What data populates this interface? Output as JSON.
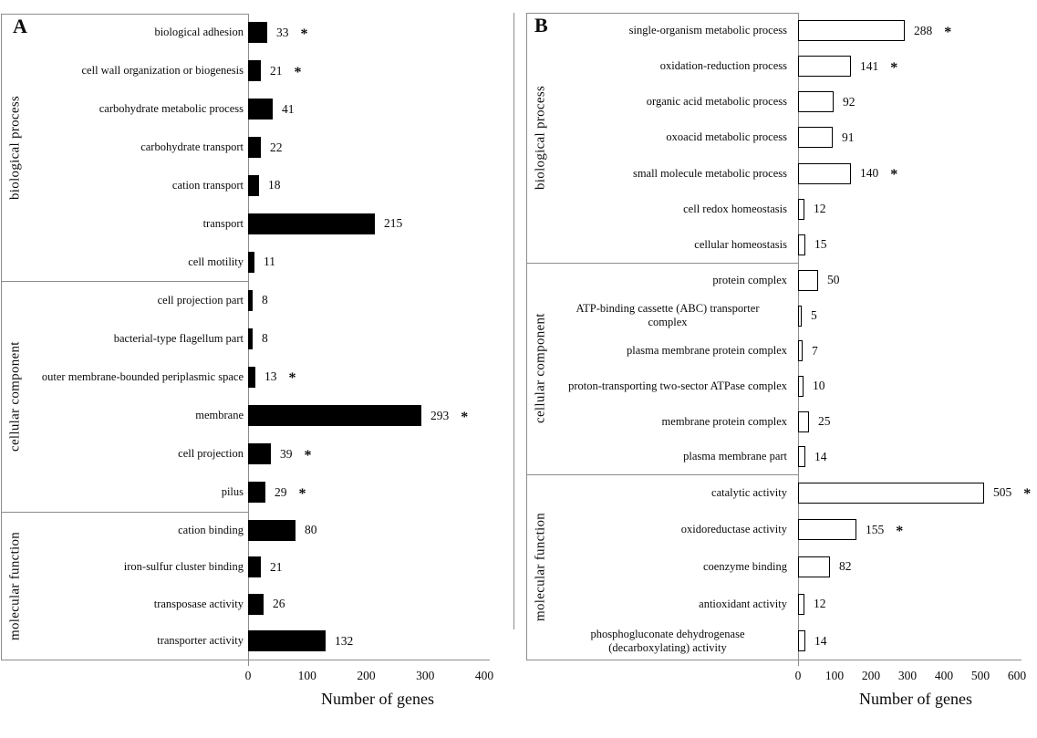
{
  "figure": {
    "xaxis_label": "Number of genes",
    "style_colors": {
      "background": "#ffffff",
      "frame_gray": "#8c8c8c",
      "bar_fill_panel_a": "#000000",
      "bar_fill_panel_b": "#ffffff",
      "bar_border": "#000000",
      "text": "#0a0a0a"
    }
  },
  "chart_data": [
    {
      "panel": "A",
      "type": "bar",
      "orientation": "horizontal",
      "bar_style": "filled-black",
      "xlabel": "Number of genes",
      "xlim": [
        0,
        400
      ],
      "xticks": [
        0,
        100,
        200,
        300,
        400
      ],
      "grid": false,
      "significance_marker": "*",
      "sections": [
        {
          "category": "biological process",
          "rows": [
            {
              "label": "biological adhesion",
              "value": 33,
              "significant": true
            },
            {
              "label": "cell wall organization or biogenesis",
              "value": 21,
              "significant": true
            },
            {
              "label": "carbohydrate metabolic process",
              "value": 41,
              "significant": false
            },
            {
              "label": "carbohydrate transport",
              "value": 22,
              "significant": false
            },
            {
              "label": "cation transport",
              "value": 18,
              "significant": false
            },
            {
              "label": "transport",
              "value": 215,
              "significant": false
            },
            {
              "label": "cell motility",
              "value": 11,
              "significant": false
            }
          ]
        },
        {
          "category": "cellular component",
          "rows": [
            {
              "label": "cell projection part",
              "value": 8,
              "significant": false
            },
            {
              "label": "bacterial-type flagellum part",
              "value": 8,
              "significant": false
            },
            {
              "label": "outer membrane-bounded periplasmic space",
              "value": 13,
              "significant": true
            },
            {
              "label": "membrane",
              "value": 293,
              "significant": true
            },
            {
              "label": "cell projection",
              "value": 39,
              "significant": true
            },
            {
              "label": "pilus",
              "value": 29,
              "significant": true
            }
          ]
        },
        {
          "category": "molecular function",
          "rows": [
            {
              "label": "cation binding",
              "value": 80,
              "significant": false
            },
            {
              "label": "iron-sulfur cluster binding",
              "value": 21,
              "significant": false
            },
            {
              "label": "transposase activity",
              "value": 26,
              "significant": false
            },
            {
              "label": "transporter activity",
              "value": 132,
              "significant": false
            }
          ]
        }
      ]
    },
    {
      "panel": "B",
      "type": "bar",
      "orientation": "horizontal",
      "bar_style": "outlined-white",
      "xlabel": "Number of genes",
      "xlim": [
        0,
        600
      ],
      "xticks": [
        0,
        100,
        200,
        300,
        400,
        500,
        600
      ],
      "grid": false,
      "significance_marker": "*",
      "sections": [
        {
          "category": "biological process",
          "rows": [
            {
              "label": "single-organism metabolic process",
              "value": 288,
              "significant": true
            },
            {
              "label": "oxidation-reduction process",
              "value": 141,
              "significant": true
            },
            {
              "label": "organic acid metabolic process",
              "value": 92,
              "significant": false
            },
            {
              "label": "oxoacid metabolic process",
              "value": 91,
              "significant": false
            },
            {
              "label": "small molecule metabolic process",
              "value": 140,
              "significant": true
            },
            {
              "label": "cell redox homeostasis",
              "value": 12,
              "significant": false
            },
            {
              "label": "cellular homeostasis",
              "value": 15,
              "significant": false
            }
          ]
        },
        {
          "category": "cellular component",
          "rows": [
            {
              "label": "protein complex",
              "value": 50,
              "significant": false
            },
            {
              "label": "ATP-binding cassette (ABC) transporter",
              "label2": "complex",
              "value": 5,
              "significant": false
            },
            {
              "label": "plasma membrane protein complex",
              "value": 7,
              "significant": false
            },
            {
              "label": "proton-transporting two-sector ATPase complex",
              "value": 10,
              "significant": false
            },
            {
              "label": "membrane protein complex",
              "value": 25,
              "significant": false
            },
            {
              "label": "plasma membrane part",
              "value": 14,
              "significant": false
            }
          ]
        },
        {
          "category": "molecular function",
          "rows": [
            {
              "label": "catalytic activity",
              "value": 505,
              "significant": true
            },
            {
              "label": "oxidoreductase activity",
              "value": 155,
              "significant": true
            },
            {
              "label": "coenzyme binding",
              "value": 82,
              "significant": false
            },
            {
              "label": "antioxidant activity",
              "value": 12,
              "significant": false
            },
            {
              "label": "phosphogluconate dehydrogenase",
              "label2": "(decarboxylating) activity",
              "value": 14,
              "significant": false
            }
          ]
        }
      ]
    }
  ]
}
